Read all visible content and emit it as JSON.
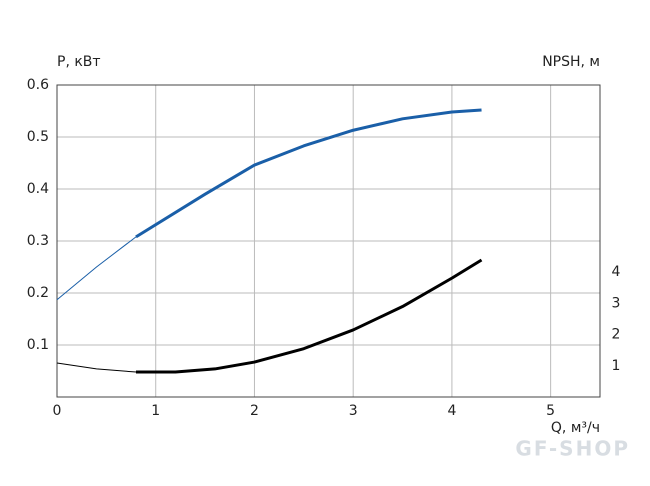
{
  "chart_data": {
    "type": "line",
    "ylabel": "P, кВт",
    "y2label": "NPSH, м",
    "xlabel": "Q, м³/ч",
    "watermark": "GF-SHOP",
    "xlim": [
      0,
      5.5
    ],
    "xticks": [
      0,
      1,
      2,
      3,
      4,
      5
    ],
    "ylim": [
      0,
      0.6
    ],
    "yticks": [
      0.1,
      0.2,
      0.3,
      0.4,
      0.5,
      0.6
    ],
    "y2lim": [
      0,
      10
    ],
    "y2ticks": [
      1,
      2,
      3,
      4
    ],
    "grid": true,
    "series": [
      {
        "color": "#1a5fa8",
        "width": 1,
        "x": [
          0,
          0.4,
          0.8
        ],
        "values": [
          0.187,
          0.25,
          0.308
        ]
      },
      {
        "color": "#1a5fa8",
        "width": 3,
        "x": [
          0.8,
          1.5,
          2,
          2.5,
          3,
          3.5,
          4,
          4.3
        ],
        "values": [
          0.308,
          0.39,
          0.446,
          0.483,
          0.513,
          0.535,
          0.548,
          0.552
        ]
      },
      {
        "color": "#000000",
        "width": 1,
        "axis": "y2",
        "x": [
          0,
          0.4,
          0.8
        ],
        "values": [
          1.09,
          0.9,
          0.8
        ]
      },
      {
        "color": "#000000",
        "width": 3,
        "axis": "y2",
        "x": [
          0.8,
          1.2,
          1.6,
          2,
          2.5,
          3,
          3.5,
          4,
          4.3
        ],
        "values": [
          0.8,
          0.8,
          0.9,
          1.12,
          1.55,
          2.15,
          2.9,
          3.81,
          4.39
        ]
      }
    ]
  }
}
